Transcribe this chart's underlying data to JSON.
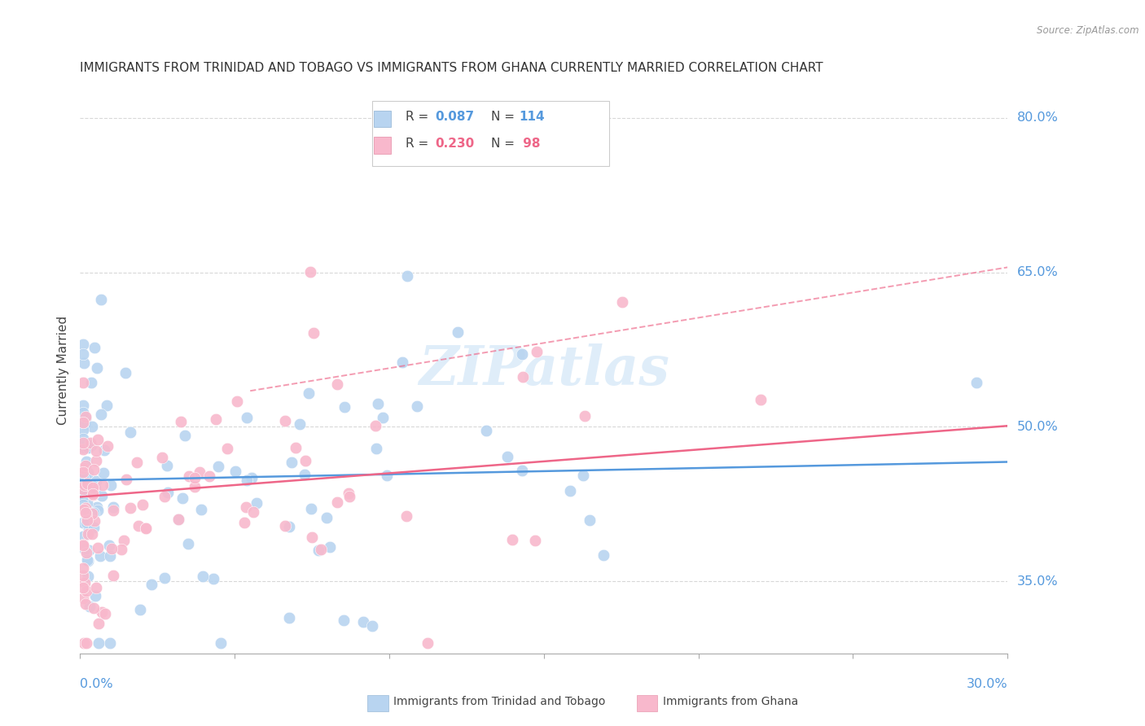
{
  "title": "IMMIGRANTS FROM TRINIDAD AND TOBAGO VS IMMIGRANTS FROM GHANA CURRENTLY MARRIED CORRELATION CHART",
  "source": "Source: ZipAtlas.com",
  "ylabel": "Currently Married",
  "ytick_labels": [
    "80.0%",
    "65.0%",
    "50.0%",
    "35.0%"
  ],
  "ytick_values": [
    0.8,
    0.65,
    0.5,
    0.35
  ],
  "watermark": "ZIPatlas",
  "background_color": "#ffffff",
  "grid_color": "#d8d8d8",
  "blue_scatter_color": "#b8d4f0",
  "pink_scatter_color": "#f8b8cc",
  "blue_line_color": "#5599dd",
  "pink_line_color": "#ee6688",
  "pink_dash_color": "#ee6688",
  "label_color": "#5599dd",
  "blue_R": "0.087",
  "blue_N": "114",
  "pink_R": "0.230",
  "pink_N": " 98",
  "blue_N_int": 114,
  "pink_N_int": 98,
  "xlim": [
    0.0,
    0.3
  ],
  "ylim": [
    0.28,
    0.83
  ],
  "blue_intercept": 0.448,
  "blue_slope": 0.06,
  "pink_intercept": 0.432,
  "pink_slope": 0.23
}
